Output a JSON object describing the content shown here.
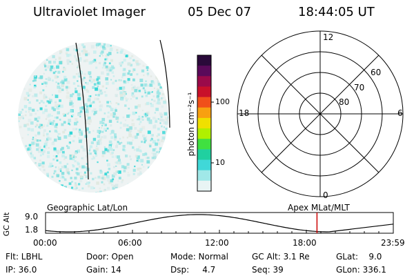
{
  "header": {
    "instrument": "Ultraviolet Imager",
    "date": "05 Dec 07",
    "time": "18:44:05 UT"
  },
  "colorbar": {
    "unit_label": "photon cm⁻²s⁻¹",
    "tick_100": "100",
    "tick_10": "10",
    "colors": [
      "#2a0a3a",
      "#5a0a5a",
      "#9a0a4a",
      "#c8102a",
      "#f0501a",
      "#f8a010",
      "#f0e000",
      "#b0f000",
      "#40e040",
      "#20d0a0",
      "#40d8d8",
      "#a0e8e8",
      "#e8f4f4"
    ]
  },
  "polar_plot": {
    "mlt_labels": {
      "top": "12",
      "bottom": "0",
      "left": "18",
      "right": "6"
    },
    "lat_labels": [
      "60",
      "70",
      "80"
    ]
  },
  "timeline": {
    "left_caption": "Geographic Lat/Lon",
    "right_caption": "Apex MLat/MLT",
    "y_axis_label": "GC Alt",
    "y_tick_top": "9.0",
    "y_tick_bottom": "1.8",
    "x_ticks": [
      "00:00",
      "06:00",
      "12:00",
      "18:00",
      "23:59"
    ],
    "marker_color": "#cc0000"
  },
  "info": {
    "flt": "Flt: LBHL",
    "ip": "IP: 36.0",
    "door": "Door: Open",
    "gain": "Gain: 14",
    "mode": "Mode: Normal",
    "dsp": "Dsp:     4.7",
    "gc_alt": "GC Alt: 3.1 Re",
    "seq": "Seq: 39",
    "glat": "GLat:    9.0",
    "glon": "GLon: 336.1"
  }
}
